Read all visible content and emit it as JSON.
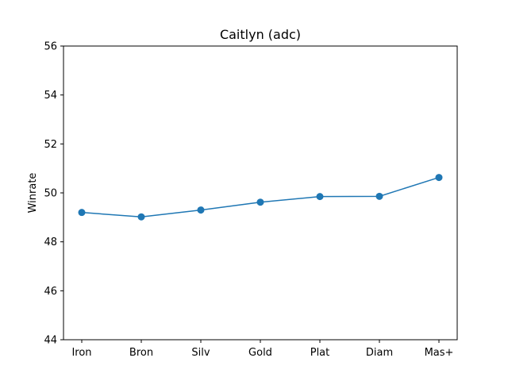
{
  "chart_data": {
    "type": "line",
    "title": "Caitlyn (adc)",
    "xlabel": "",
    "ylabel": "Winrate",
    "categories": [
      "Iron",
      "Bron",
      "Silv",
      "Gold",
      "Plat",
      "Diam",
      "Mas+"
    ],
    "series": [
      {
        "values": [
          49.2,
          49.02,
          49.3,
          49.62,
          49.85,
          49.86,
          50.63
        ],
        "color": "#1f77b4"
      }
    ],
    "ylim": [
      44,
      56
    ],
    "yticks": [
      44,
      46,
      48,
      50,
      52,
      54,
      56
    ],
    "grid": false,
    "markers": "circle"
  }
}
